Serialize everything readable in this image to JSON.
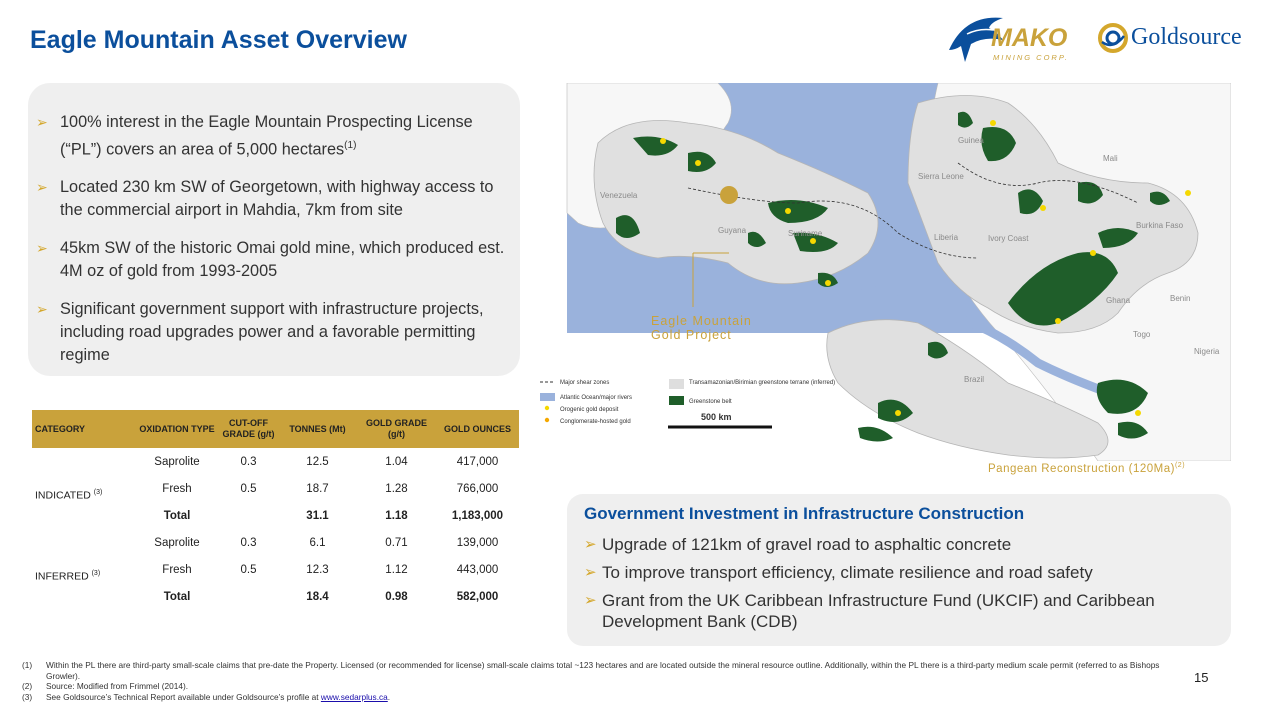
{
  "title": "Eagle Mountain Asset Overview",
  "logos": {
    "mako_name": "MAKO",
    "mako_sub": "MINING CORP.",
    "goldsource_name": "Goldsource"
  },
  "bullets": [
    {
      "text": "100% interest in the Eagle Mountain Prospecting License (“PL”) covers an area of 5,000 hectares",
      "sup": "(1)"
    },
    {
      "text": "Located 230 km SW of Georgetown, with highway access to the commercial airport in Mahdia, 7km from site",
      "sup": ""
    },
    {
      "text": "45km SW of the historic Omai gold mine, which produced est. 4M oz of gold from 1993-2005",
      "sup": ""
    },
    {
      "text": "Significant government support with  infrastructure projects, including road upgrades power and a favorable permitting regime",
      "sup": ""
    }
  ],
  "table": {
    "headers": [
      "CATEGORY",
      "OXIDATION TYPE",
      "CUT-OFF GRADE (g/t)",
      "TONNES (Mt)",
      "GOLD GRADE (g/t)",
      "GOLD OUNCES"
    ],
    "groups": [
      {
        "category": "INDICATED",
        "sup": "(3)",
        "rows": [
          [
            "Saprolite",
            "0.3",
            "12.5",
            "1.04",
            "417,000"
          ],
          [
            "Fresh",
            "0.5",
            "18.7",
            "1.28",
            "766,000"
          ],
          [
            "Total",
            "",
            "31.1",
            "1.18",
            "1,183,000"
          ]
        ]
      },
      {
        "category": "INFERRED",
        "sup": "(3)",
        "rows": [
          [
            "Saprolite",
            "0.3",
            "6.1",
            "0.71",
            "139,000"
          ],
          [
            "Fresh",
            "0.5",
            "12.3",
            "1.12",
            "443,000"
          ],
          [
            "Total",
            "",
            "18.4",
            "0.98",
            "582,000"
          ]
        ]
      }
    ]
  },
  "map": {
    "project_label_line1": "Eagle Mountain",
    "project_label_line2": "Gold Project",
    "caption": "Pangean Reconstruction (120Ma)",
    "caption_sup": "(2)",
    "countries": [
      "Venezuela",
      "Guyana",
      "Suriname",
      "Guinea",
      "Sierra Leone",
      "Liberia",
      "Ivory Coast",
      "Mali",
      "Burkina Faso",
      "Ghana",
      "Togo",
      "Benin",
      "Nigeria",
      "Brazil"
    ],
    "legend": {
      "shear": "Major shear zones",
      "ocean": "Atlantic Ocean/major rivers",
      "orogenic": "Orogenic gold deposit",
      "conglomerate": "Conglomerate-hosted gold",
      "terrane": "Transamazonian/Birimian greenstone terrane (inferred)",
      "belt": "Greenstone belt",
      "scale": "500 km"
    },
    "colors": {
      "ocean": "#9ab2dc",
      "land": "#e0e0e0",
      "greenstone": "#1f5e2a",
      "deposit": "#f5d800",
      "project": "#c9a23b"
    }
  },
  "gov": {
    "title": "Government Investment in Infrastructure Construction",
    "items": [
      "Upgrade of 121km of gravel road to asphaltic concrete",
      "To improve transport efficiency, climate resilience and road safety",
      "Grant from the UK Caribbean Infrastructure Fund (UKCIF) and Caribbean Development Bank (CDB)"
    ]
  },
  "footnotes": [
    {
      "num": "(1)",
      "text": "Within the PL there are third-party small-scale claims that pre-date the Property. Licensed (or recommended for license) small-scale claims total ~123 hectares and are located outside the mineral resource outline. Additionally, within the PL there is a third-party medium scale permit (referred to as Bishops Growler)."
    },
    {
      "num": "(2)",
      "text": "Source: Modified from Frimmel (2014)."
    },
    {
      "num": "(3)",
      "text": "See Goldsource’s Technical Report available under Goldsource’s profile at ",
      "link": "www.sedarplus.ca",
      "after": "."
    }
  ],
  "page_number": "15"
}
